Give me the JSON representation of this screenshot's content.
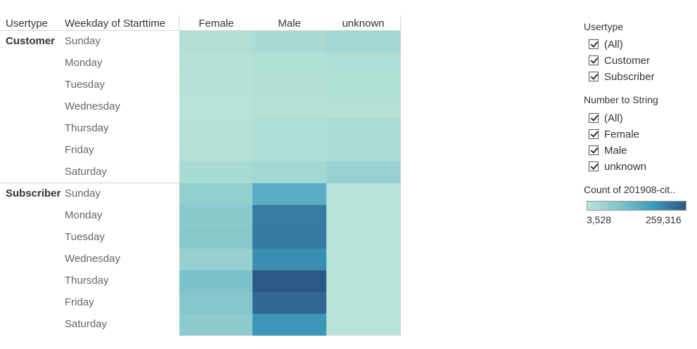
{
  "table": {
    "row_header_1": "Usertype",
    "row_header_2": "Weekday of Starttime",
    "columns": [
      "Female",
      "Male",
      "unknown"
    ],
    "groups": [
      {
        "usertype": "Customer",
        "days": [
          "Sunday",
          "Monday",
          "Tuesday",
          "Wednesday",
          "Thursday",
          "Friday",
          "Saturday"
        ]
      },
      {
        "usertype": "Subscriber",
        "days": [
          "Sunday",
          "Monday",
          "Tuesday",
          "Wednesday",
          "Thursday",
          "Friday",
          "Saturday"
        ]
      }
    ]
  },
  "chart_data": {
    "type": "heatmap",
    "row_fields": [
      "Usertype",
      "Weekday of Starttime"
    ],
    "columns": [
      "Female",
      "Male",
      "unknown"
    ],
    "rows": [
      {
        "usertype": "Customer",
        "day": "Sunday",
        "values": [
          16000,
          27000,
          38000
        ]
      },
      {
        "usertype": "Customer",
        "day": "Monday",
        "values": [
          9000,
          15000,
          19000
        ]
      },
      {
        "usertype": "Customer",
        "day": "Tuesday",
        "values": [
          8500,
          14000,
          17000
        ]
      },
      {
        "usertype": "Customer",
        "day": "Wednesday",
        "values": [
          6000,
          11000,
          13000
        ]
      },
      {
        "usertype": "Customer",
        "day": "Thursday",
        "values": [
          9500,
          18000,
          22000
        ]
      },
      {
        "usertype": "Customer",
        "day": "Friday",
        "values": [
          11000,
          21000,
          26000
        ]
      },
      {
        "usertype": "Customer",
        "day": "Saturday",
        "values": [
          28000,
          38000,
          52000
        ]
      },
      {
        "usertype": "Subscriber",
        "day": "Sunday",
        "values": [
          60000,
          137000,
          5000
        ]
      },
      {
        "usertype": "Subscriber",
        "day": "Monday",
        "values": [
          72000,
          215000,
          5500
        ]
      },
      {
        "usertype": "Subscriber",
        "day": "Tuesday",
        "values": [
          75000,
          217000,
          5500
        ]
      },
      {
        "usertype": "Subscriber",
        "day": "Wednesday",
        "values": [
          55000,
          192000,
          5000
        ]
      },
      {
        "usertype": "Subscriber",
        "day": "Thursday",
        "values": [
          92000,
          259316,
          6000
        ]
      },
      {
        "usertype": "Subscriber",
        "day": "Friday",
        "values": [
          82000,
          238000,
          5800
        ]
      },
      {
        "usertype": "Subscriber",
        "day": "Saturday",
        "values": [
          68000,
          182000,
          5000
        ]
      }
    ],
    "color_range": [
      3528,
      259316
    ],
    "color_scale": [
      "#b9e4d8",
      "#7fc3cb",
      "#3e9cbc",
      "#2c5886"
    ],
    "legend_placement": "right"
  },
  "filters": [
    {
      "title": "Usertype",
      "options": [
        {
          "label": "(All)",
          "checked": true
        },
        {
          "label": "Customer",
          "checked": true
        },
        {
          "label": "Subscriber",
          "checked": true
        }
      ]
    },
    {
      "title": "Number to String",
      "options": [
        {
          "label": "(All)",
          "checked": true
        },
        {
          "label": "Female",
          "checked": true
        },
        {
          "label": "Male",
          "checked": true
        },
        {
          "label": "unknown",
          "checked": true
        }
      ]
    }
  ],
  "color_legend": {
    "title": "Count of 201908-cit..",
    "min_label": "3,528",
    "max_label": "259,316"
  }
}
